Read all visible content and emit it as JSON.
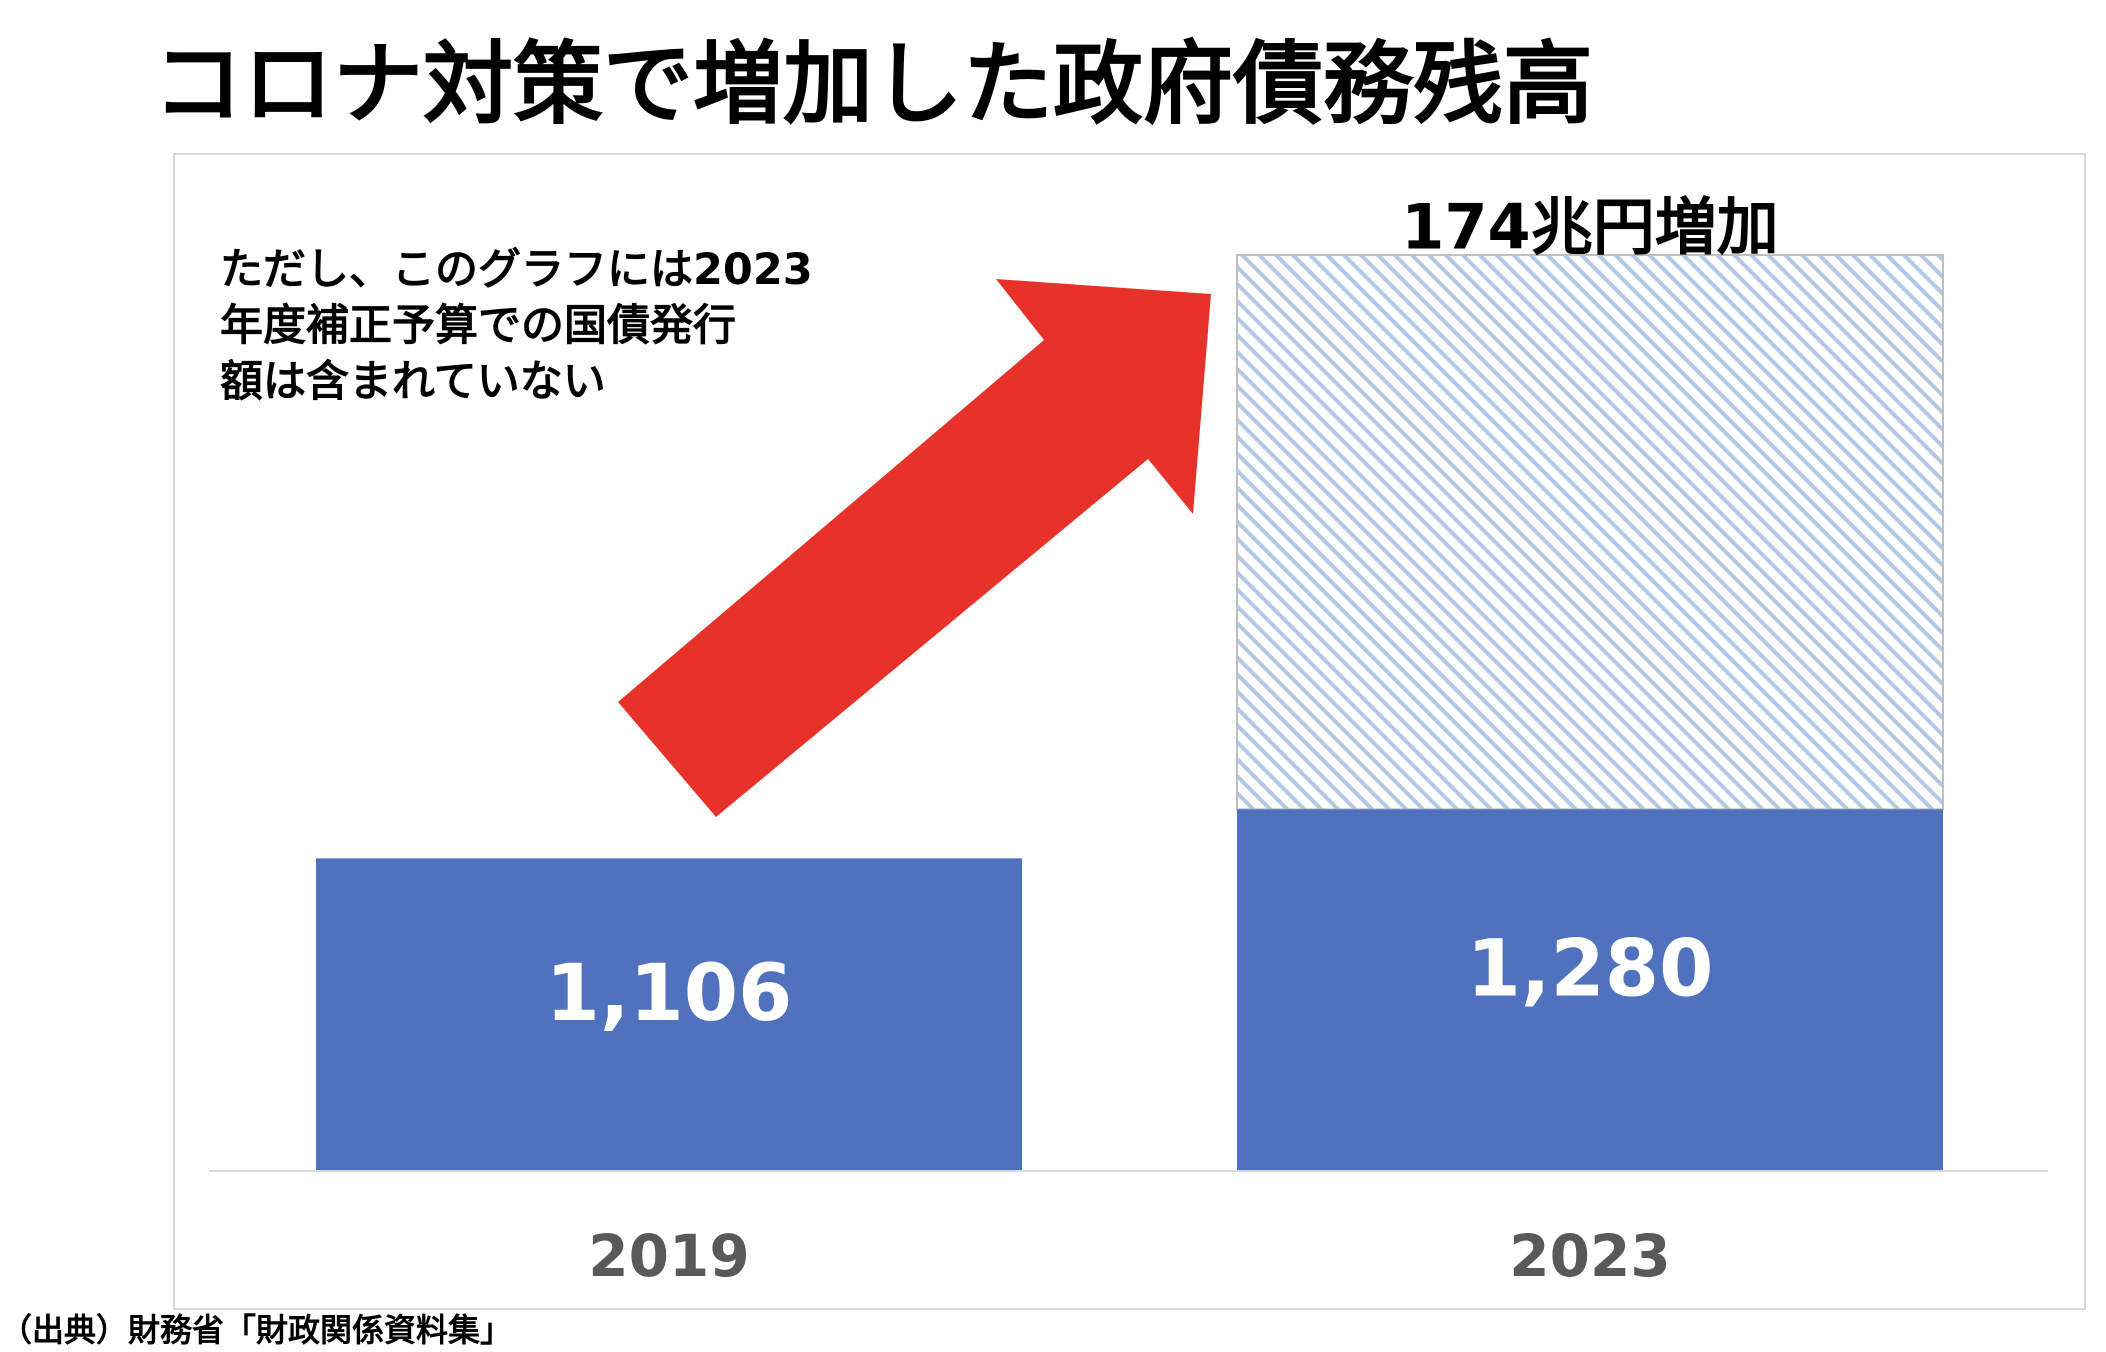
{
  "title": "コロナ対策で増加した政府債務残高",
  "note": {
    "lines": [
      "ただし、このグラフには2023",
      "年度補正予算での国債発行",
      "額は含まれていない"
    ]
  },
  "source": "（出典）財務省「財政関係資料集」",
  "icons": {
    "arrow": "up-right-arrow"
  },
  "colors": {
    "bar": "#4f71be",
    "hatch": "#b4c7e7",
    "hatch_border": "#bfbfbf",
    "arrow": "#e63228",
    "value_label": "#ffffff",
    "category_text": "#595959",
    "frame": "#d9d9d9"
  },
  "chart_data": {
    "type": "bar",
    "categories": [
      "2019",
      "2023"
    ],
    "series": [
      {
        "values": [
          1106,
          1280
        ]
      }
    ],
    "value_labels": [
      "1,106",
      "1,280"
    ],
    "annotations": [
      {
        "text": "174兆円増加",
        "value": 174,
        "category": "2023",
        "marker": "hatched-box"
      }
    ],
    "legend": "none",
    "grid": false
  }
}
